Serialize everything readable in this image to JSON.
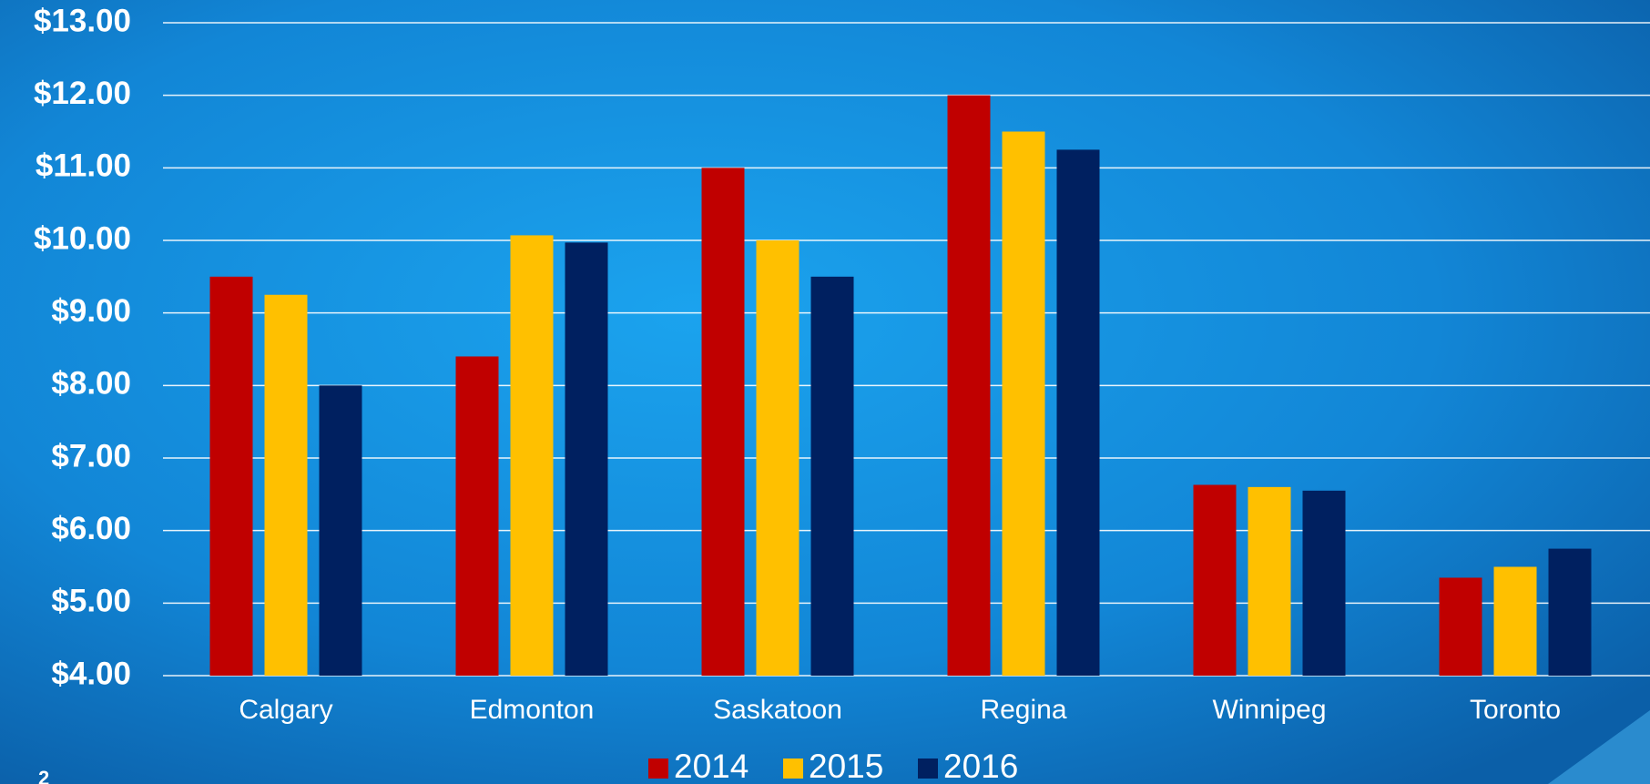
{
  "chart_data": {
    "type": "bar",
    "categories": [
      "Calgary",
      "Edmonton",
      "Saskatoon",
      "Regina",
      "Winnipeg",
      "Toronto"
    ],
    "series": [
      {
        "name": "2014",
        "color": "#c00000",
        "values": [
          9.5,
          8.4,
          11.0,
          12.0,
          6.63,
          5.35
        ]
      },
      {
        "name": "2015",
        "color": "#ffc000",
        "values": [
          9.25,
          10.07,
          10.0,
          11.5,
          6.6,
          5.5
        ]
      },
      {
        "name": "2016",
        "color": "#002060",
        "values": [
          8.0,
          9.97,
          9.5,
          11.25,
          6.55,
          5.75
        ]
      }
    ],
    "ylim": [
      4,
      13
    ],
    "yticks": [
      {
        "value": 4,
        "label": "$4.00"
      },
      {
        "value": 5,
        "label": "$5.00"
      },
      {
        "value": 6,
        "label": "$6.00"
      },
      {
        "value": 7,
        "label": "$7.00"
      },
      {
        "value": 8,
        "label": "$8.00"
      },
      {
        "value": 9,
        "label": "$9.00"
      },
      {
        "value": 10,
        "label": "$10.00"
      },
      {
        "value": 11,
        "label": "$11.00"
      },
      {
        "value": 12,
        "label": "$12.00"
      },
      {
        "value": 13,
        "label": "$13.00"
      }
    ],
    "grid": true,
    "legend": "bottom"
  },
  "slide_number": "2"
}
